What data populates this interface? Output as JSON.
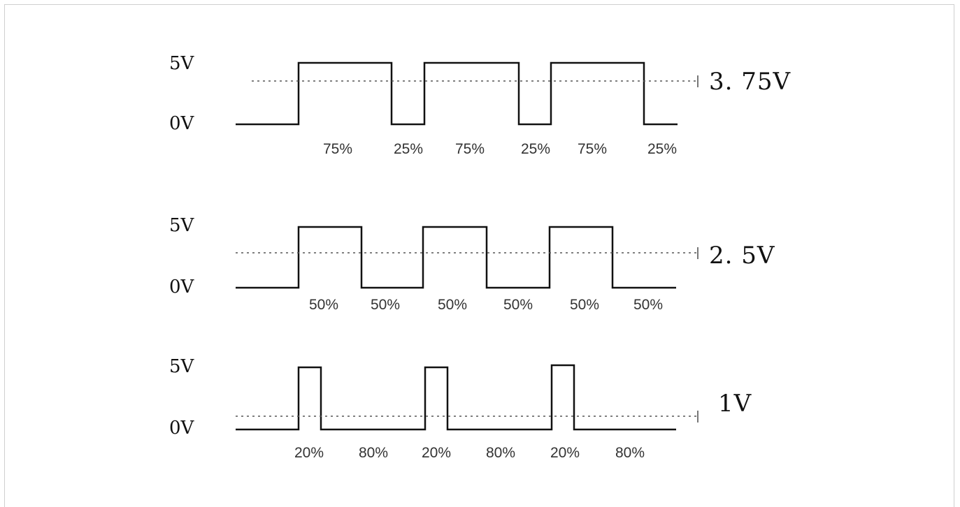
{
  "diagrams": [
    {
      "high_label": "5V",
      "low_label": "0V",
      "average_label": "3. 75V",
      "duty_high_percent": 75,
      "duty_labels": [
        "75%",
        "25%",
        "75%",
        "25%",
        "75%",
        "25%"
      ]
    },
    {
      "high_label": "5V",
      "low_label": "0V",
      "average_label": "2. 5V",
      "duty_high_percent": 50,
      "duty_labels": [
        "50%",
        "50%",
        "50%",
        "50%",
        "50%",
        "50%"
      ]
    },
    {
      "high_label": "5V",
      "low_label": "0V",
      "average_label": "1V",
      "duty_high_percent": 20,
      "duty_labels": [
        "20%",
        "80%",
        "20%",
        "80%",
        "20%",
        "80%"
      ]
    }
  ]
}
